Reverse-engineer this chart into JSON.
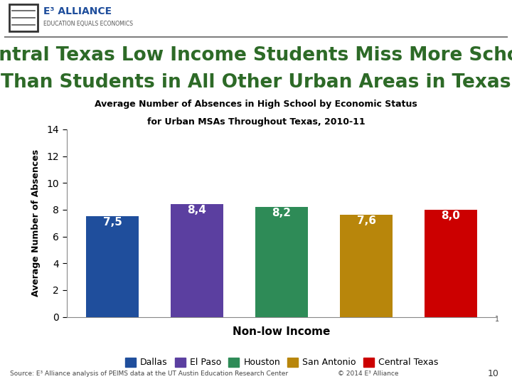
{
  "title_line1": "Central Texas Low Income Students Miss More School",
  "title_line2": "Than Students in All Other Urban Areas in Texas",
  "subtitle_line1": "Average Number of Absences in High School by Economic Status",
  "subtitle_line2": "for Urban MSAs Throughout Texas, 2010-11",
  "xlabel": "Non-low Income",
  "ylabel": "Average Number of Absences",
  "categories": [
    "Dallas",
    "El Paso",
    "Houston",
    "San Antonio",
    "Central Texas"
  ],
  "values": [
    7.5,
    8.4,
    8.2,
    7.6,
    8.0
  ],
  "bar_labels": [
    "7,5",
    "8,4",
    "8,2",
    "7,6",
    "8,0"
  ],
  "bar_colors": [
    "#1f4e9c",
    "#5b3fa0",
    "#2e8b57",
    "#b8860b",
    "#cc0000"
  ],
  "ylim": [
    0,
    14
  ],
  "yticks": [
    0,
    2,
    4,
    6,
    8,
    10,
    12,
    14
  ],
  "background_color": "#ffffff",
  "title_color": "#2d6a27",
  "subtitle_color": "#000000",
  "source_text": "Source: E³ Alliance analysis of PEIMS data at the UT Austin Education Research Center",
  "copyright_text": "© 2014 E³ Alliance",
  "page_number": "10",
  "header_line_color": "#808080",
  "logo_text": "E³ ALLIANCE",
  "logo_sub": "EDUCATION EQUALS ECONOMICS"
}
